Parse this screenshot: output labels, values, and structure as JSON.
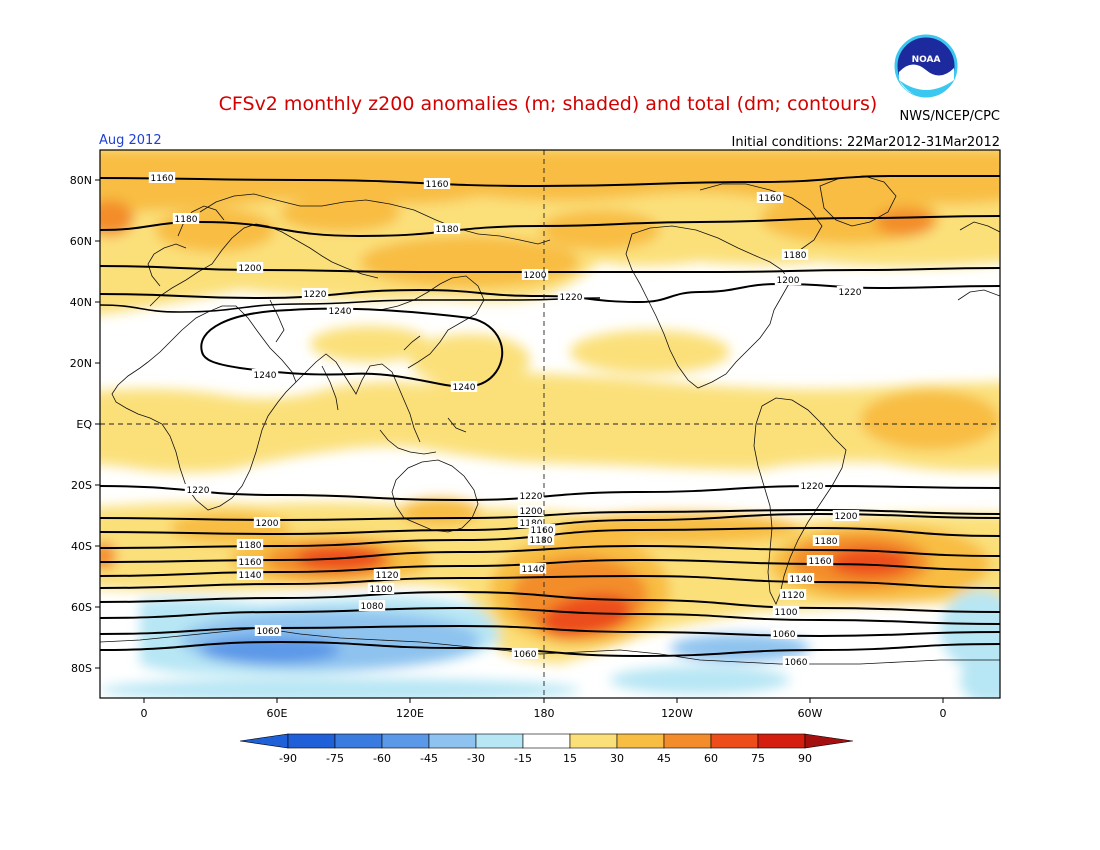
{
  "header": {
    "title": "CFSv2 monthly z200 anomalies (m; shaded) and total (dm; contours)",
    "agency": "NWS/NCEP/CPC",
    "month": "Aug 2012",
    "initial_conditions": "Initial conditions: 22Mar2012-31Mar2012"
  },
  "colors": {
    "title": "#d40000",
    "month": "#1f3fd6",
    "neg_90": "#1f5fd8",
    "neg_75": "#3a7be0",
    "neg_60": "#5b98e8",
    "neg_45": "#8ec3ef",
    "neg_30": "#b7e6f4",
    "neutral": "#ffffff",
    "pos_15": "#fbe07a",
    "pos_30": "#f8bd43",
    "pos_45": "#f38d2c",
    "pos_60": "#ec4d1b",
    "pos_75": "#d41f10",
    "pos_90": "#a40f0f"
  },
  "map": {
    "lat_labels": [
      "80N",
      "60N",
      "40N",
      "20N",
      "EQ",
      "20S",
      "40S",
      "60S",
      "80S"
    ],
    "lon_labels": [
      "0",
      "60E",
      "120E",
      "180",
      "120W",
      "60W",
      "0"
    ],
    "contour_levels": [
      {
        "value": 1160,
        "labels": [
          "1160",
          "1160",
          "1160"
        ]
      },
      {
        "value": 1180,
        "labels": [
          "1180",
          "1180",
          "1180"
        ]
      },
      {
        "value": 1200,
        "labels": [
          "1200",
          "1200",
          "1200"
        ]
      },
      {
        "value": 1220,
        "labels": [
          "1220",
          "1220",
          "1220"
        ]
      },
      {
        "value": 1240,
        "labels": [
          "1240",
          "1240",
          "1240"
        ]
      }
    ],
    "sh_contour_labels": [
      "1220",
      "1220",
      "1220",
      "1200",
      "1200",
      "1200",
      "1180",
      "1180",
      "1180",
      "1180",
      "1160",
      "1160",
      "1160",
      "1140",
      "1140",
      "1140",
      "1120",
      "1120",
      "1100",
      "1100",
      "1080",
      "1060",
      "1060",
      "1060",
      "1060"
    ]
  },
  "colorbar": {
    "labels": [
      "-90",
      "-75",
      "-60",
      "-45",
      "-30",
      "-15",
      "15",
      "30",
      "45",
      "60",
      "75",
      "90"
    ]
  }
}
